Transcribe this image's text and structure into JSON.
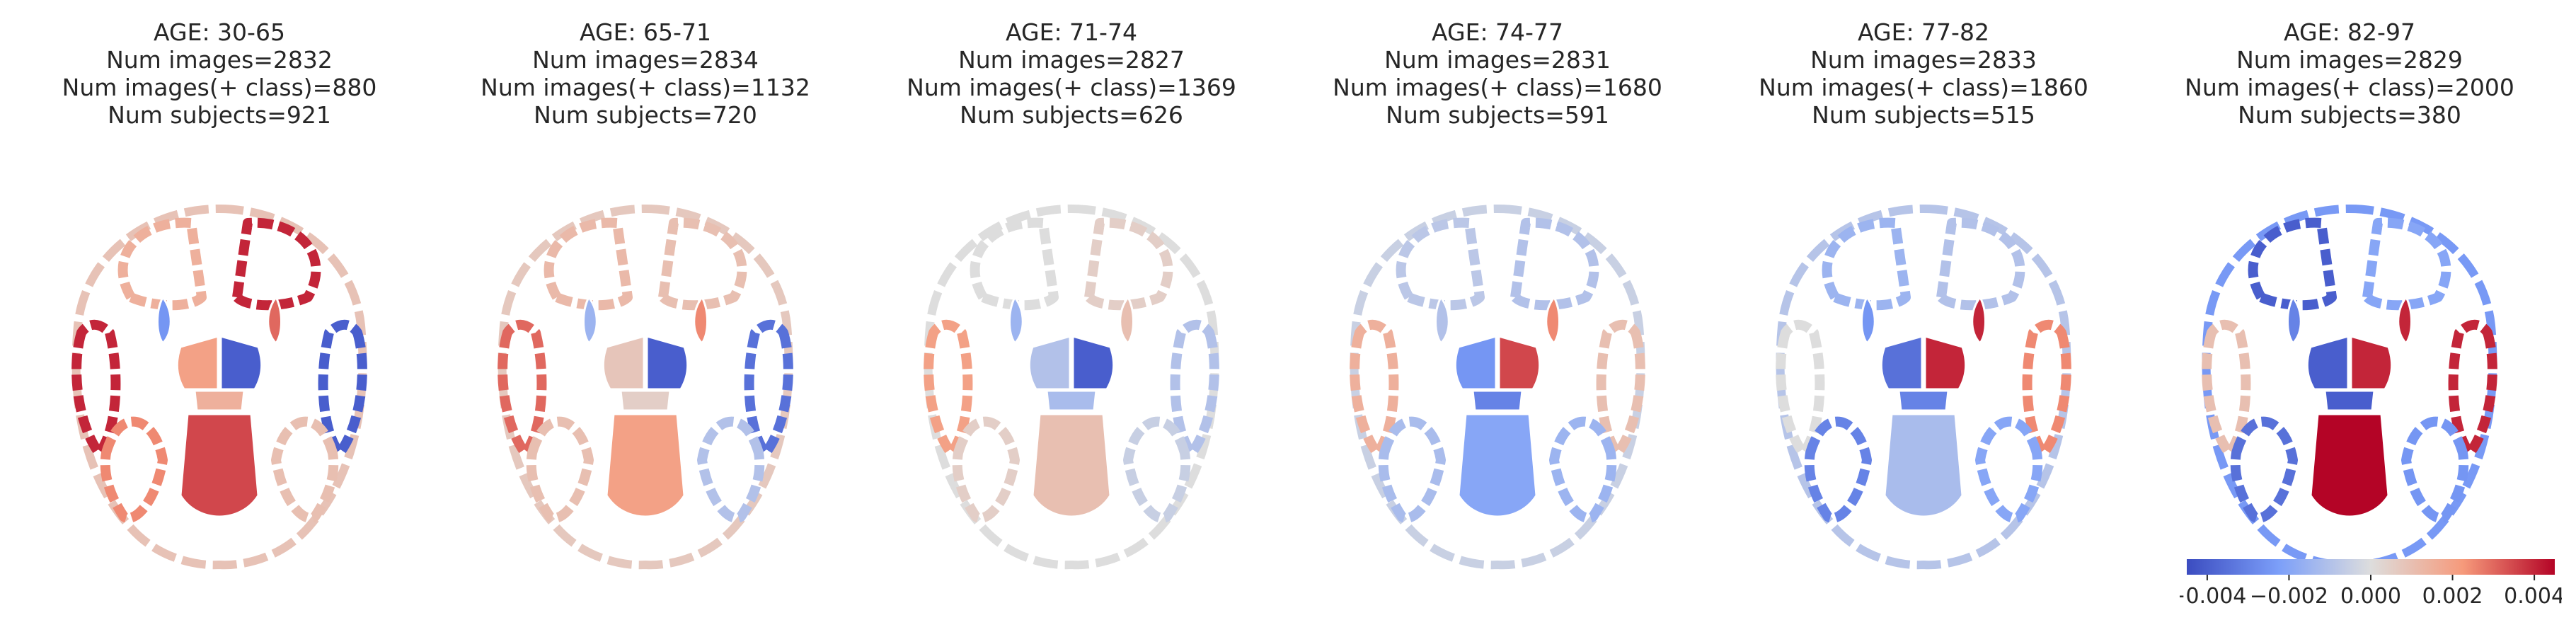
{
  "panels": [
    {
      "age": "AGE: 30-65",
      "num_images": "Num images=2832",
      "num_pos": "Num images(+ class)=880",
      "num_subjects": "Num subjects=921"
    },
    {
      "age": "AGE: 65-71",
      "num_images": "Num images=2834",
      "num_pos": "Num images(+ class)=1132",
      "num_subjects": "Num subjects=720"
    },
    {
      "age": "AGE: 71-74",
      "num_images": "Num images=2827",
      "num_pos": "Num images(+ class)=1369",
      "num_subjects": "Num subjects=626"
    },
    {
      "age": "AGE: 74-77",
      "num_images": "Num images=2831",
      "num_pos": "Num images(+ class)=1680",
      "num_subjects": "Num subjects=591"
    },
    {
      "age": "AGE: 77-82",
      "num_images": "Num images=2833",
      "num_pos": "Num images(+ class)=1860",
      "num_subjects": "Num subjects=515"
    },
    {
      "age": "AGE: 82-97",
      "num_images": "Num images=2829",
      "num_pos": "Num images(+ class)=2000",
      "num_subjects": "Num subjects=380"
    }
  ],
  "chart_data": {
    "type": "heatmap",
    "colormap": "coolwarm",
    "colorbar": {
      "min": -0.0045,
      "max": 0.0045,
      "ticks": [
        -0.004,
        -0.002,
        0.0,
        0.002,
        0.004
      ],
      "tick_labels": [
        "−0.004",
        "−0.002",
        "0.000",
        "0.002",
        "0.004"
      ]
    },
    "regions": [
      "frontal-left",
      "frontal-right",
      "insula-left",
      "insula-right",
      "temporal-left",
      "temporal-right",
      "subcortical-left",
      "subcortical-right",
      "midbrain",
      "occipital-left",
      "occipital-right",
      "cerebellum"
    ],
    "region_values": [
      [
        0.0015,
        0.004,
        -0.0025,
        0.003,
        0.004,
        -0.004,
        0.002,
        -0.004,
        0.0015,
        0.0025,
        0.001,
        0.0035
      ],
      [
        0.0012,
        0.001,
        -0.0015,
        0.0025,
        0.003,
        -0.0035,
        0.0008,
        -0.004,
        0.0005,
        0.001,
        -0.001,
        0.002
      ],
      [
        0.0,
        0.0005,
        -0.0015,
        0.001,
        0.002,
        -0.001,
        -0.001,
        -0.004,
        -0.0012,
        0.0005,
        -0.0005,
        0.001
      ],
      [
        -0.0008,
        -0.001,
        -0.001,
        0.0025,
        0.0015,
        0.001,
        -0.0025,
        0.0035,
        -0.003,
        -0.0012,
        -0.0015,
        -0.002
      ],
      [
        -0.0015,
        -0.001,
        -0.0025,
        0.004,
        0.0,
        0.0025,
        -0.0035,
        0.004,
        -0.003,
        -0.003,
        -0.002,
        -0.0012
      ],
      [
        -0.004,
        -0.002,
        -0.003,
        0.004,
        0.001,
        0.004,
        -0.004,
        0.004,
        -0.004,
        -0.0035,
        -0.0025,
        0.0045
      ]
    ]
  }
}
